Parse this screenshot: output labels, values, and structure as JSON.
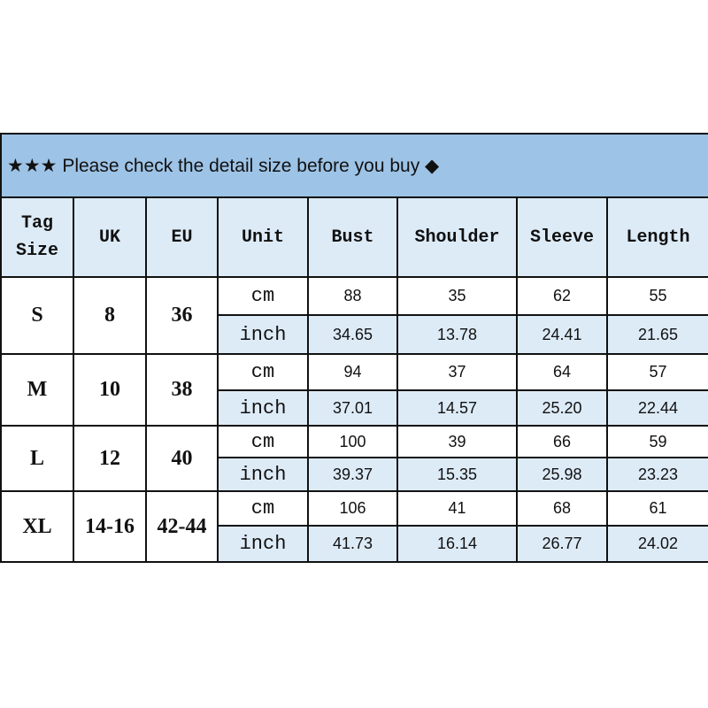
{
  "title": "★★★ Please check the detail size before you buy ◆",
  "colors": {
    "title_bg": "#9dc3e6",
    "header_bg": "#ddebf7",
    "inch_row_bg": "#ddebf7"
  },
  "headers": [
    "Tag Size",
    "UK",
    "EU",
    "Unit",
    "Bust",
    "Shoulder",
    "Sleeve",
    "Length"
  ],
  "sizes": [
    {
      "tag": "S",
      "uk": "8",
      "eu": "36",
      "cm": {
        "unit": "cm",
        "values": [
          "88",
          "35",
          "62",
          "55"
        ]
      },
      "inch": {
        "unit": "inch",
        "values": [
          "34.65",
          "13.78",
          "24.41",
          "21.65"
        ]
      }
    },
    {
      "tag": "M",
      "uk": "10",
      "eu": "38",
      "cm": {
        "unit": "cm",
        "values": [
          "94",
          "37",
          "64",
          "57"
        ]
      },
      "inch": {
        "unit": "inch",
        "values": [
          "37.01",
          "14.57",
          "25.20",
          "22.44"
        ]
      }
    },
    {
      "tag": "L",
      "uk": "12",
      "eu": "40",
      "cm": {
        "unit": "cm",
        "values": [
          "100",
          "39",
          "66",
          "59"
        ]
      },
      "inch": {
        "unit": "inch",
        "values": [
          "39.37",
          "15.35",
          "25.98",
          "23.23"
        ]
      }
    },
    {
      "tag": "XL",
      "uk": "14-16",
      "eu": "42-44",
      "cm": {
        "unit": "cm",
        "values": [
          "106",
          "41",
          "68",
          "61"
        ]
      },
      "inch": {
        "unit": "inch",
        "values": [
          "41.73",
          "16.14",
          "26.77",
          "24.02"
        ]
      }
    }
  ]
}
